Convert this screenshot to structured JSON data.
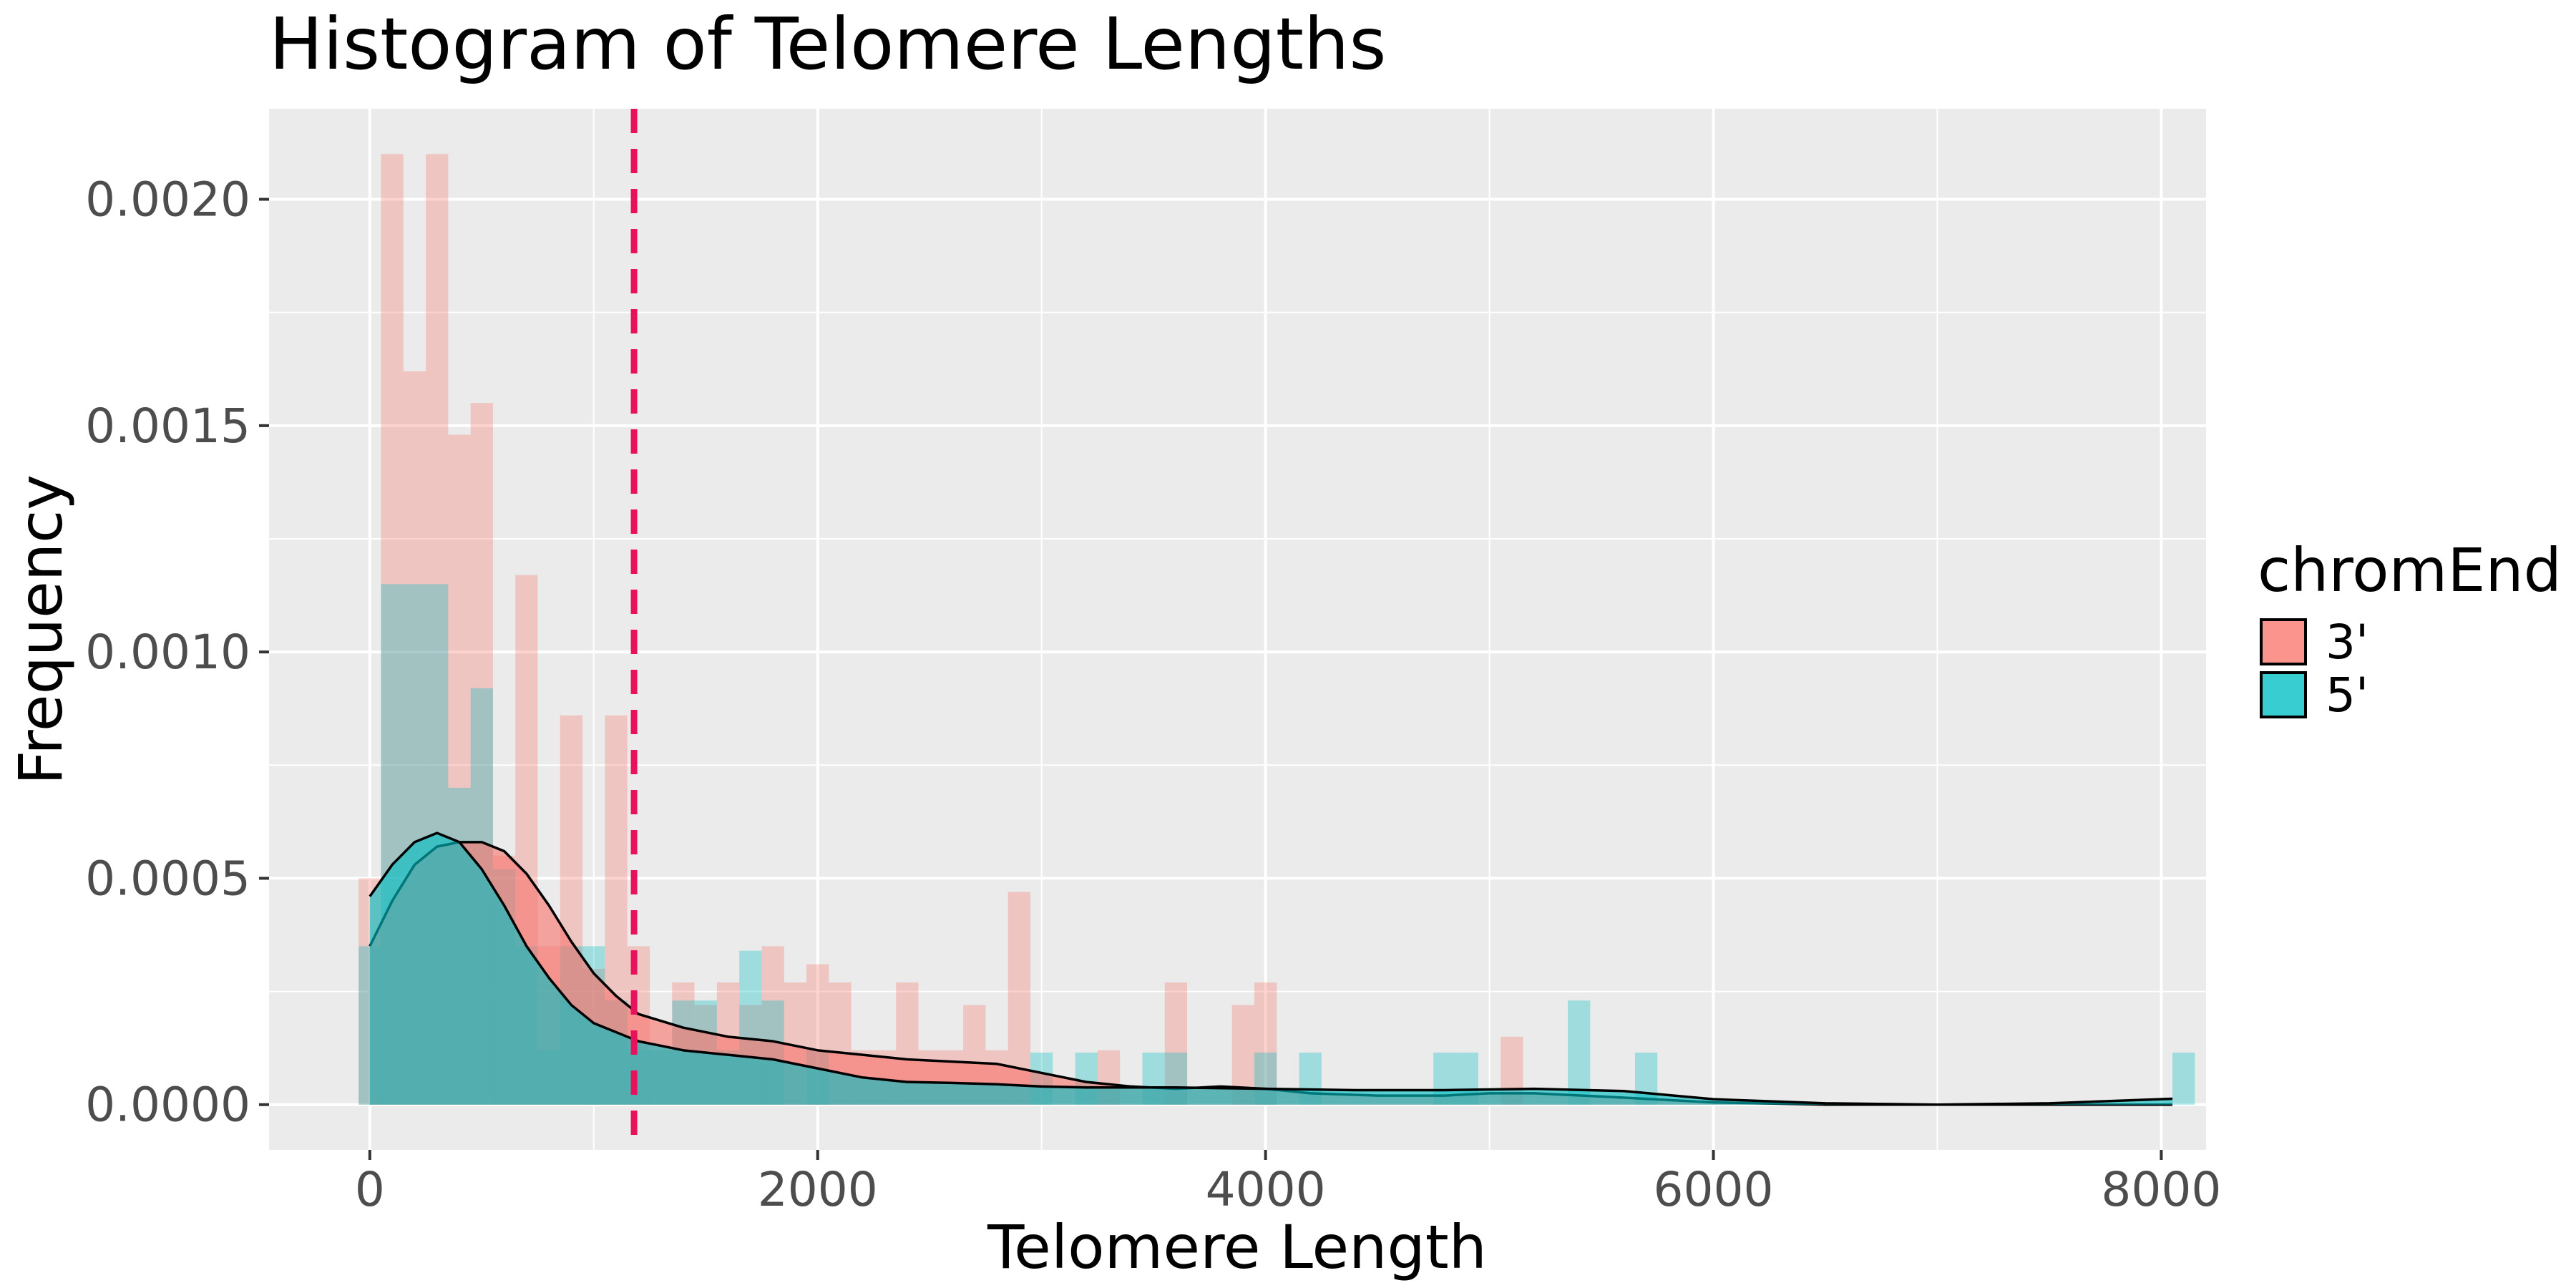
{
  "chart_data": {
    "type": "bar",
    "title": "Histogram of Telomere Lengths",
    "xlabel": "Telomere Length",
    "ylabel": "Frequency",
    "xlim": [
      -450,
      8200
    ],
    "ylim": [
      -0.0001,
      0.0022
    ],
    "x_ticks": [
      0,
      2000,
      4000,
      6000,
      8000
    ],
    "x_tick_labels": [
      "0",
      "2000",
      "4000",
      "6000",
      "8000"
    ],
    "y_ticks": [
      0.0,
      0.0005,
      0.001,
      0.0015,
      0.002
    ],
    "y_tick_labels": [
      "0.0000",
      "0.0005",
      "0.0010",
      "0.0015",
      "0.0020"
    ],
    "grid": true,
    "legend": {
      "title": "chromEnd",
      "position": "right"
    },
    "reference_line": {
      "x": 1180,
      "color": "#e8125c",
      "style": "dashed"
    },
    "bin_width": 100,
    "series": [
      {
        "name": "3'",
        "color": "#f8766d",
        "bins": [
          {
            "x": 0,
            "y": 0.0005
          },
          {
            "x": 100,
            "y": 0.0021
          },
          {
            "x": 200,
            "y": 0.00162
          },
          {
            "x": 300,
            "y": 0.0021
          },
          {
            "x": 400,
            "y": 0.00148
          },
          {
            "x": 500,
            "y": 0.00155
          },
          {
            "x": 600,
            "y": 0.00055
          },
          {
            "x": 700,
            "y": 0.00117
          },
          {
            "x": 800,
            "y": 0.00035
          },
          {
            "x": 900,
            "y": 0.00086
          },
          {
            "x": 1000,
            "y": 0.0003
          },
          {
            "x": 1100,
            "y": 0.00086
          },
          {
            "x": 1200,
            "y": 0.00035
          },
          {
            "x": 1300,
            "y": 0.00012
          },
          {
            "x": 1400,
            "y": 0.00027
          },
          {
            "x": 1500,
            "y": 0.00022
          },
          {
            "x": 1600,
            "y": 0.00027
          },
          {
            "x": 1700,
            "y": 0.00022
          },
          {
            "x": 1800,
            "y": 0.00035
          },
          {
            "x": 1900,
            "y": 0.00027
          },
          {
            "x": 2000,
            "y": 0.00031
          },
          {
            "x": 2100,
            "y": 0.00027
          },
          {
            "x": 2200,
            "y": 0.00012
          },
          {
            "x": 2300,
            "y": 0.00012
          },
          {
            "x": 2400,
            "y": 0.00027
          },
          {
            "x": 2500,
            "y": 0.00012
          },
          {
            "x": 2600,
            "y": 0.00012
          },
          {
            "x": 2700,
            "y": 0.00022
          },
          {
            "x": 2800,
            "y": 0.00012
          },
          {
            "x": 2900,
            "y": 0.00047
          },
          {
            "x": 3300,
            "y": 0.00012
          },
          {
            "x": 3600,
            "y": 0.00027
          },
          {
            "x": 3900,
            "y": 0.00022
          },
          {
            "x": 4000,
            "y": 0.00027
          },
          {
            "x": 5100,
            "y": 0.00015
          }
        ]
      },
      {
        "name": "5'",
        "color": "#00bfc4",
        "bins": [
          {
            "x": 0,
            "y": 0.00035
          },
          {
            "x": 100,
            "y": 0.00115
          },
          {
            "x": 200,
            "y": 0.00115
          },
          {
            "x": 300,
            "y": 0.00115
          },
          {
            "x": 400,
            "y": 0.0007
          },
          {
            "x": 500,
            "y": 0.00092
          },
          {
            "x": 600,
            "y": 0.00052
          },
          {
            "x": 700,
            "y": 0.00035
          },
          {
            "x": 800,
            "y": 0.00012
          },
          {
            "x": 900,
            "y": 0.00035
          },
          {
            "x": 1000,
            "y": 0.00035
          },
          {
            "x": 1100,
            "y": 0.00023
          },
          {
            "x": 1200,
            "y": 0.00012
          },
          {
            "x": 1300,
            "y": 0.00012
          },
          {
            "x": 1400,
            "y": 0.00023
          },
          {
            "x": 1500,
            "y": 0.00023
          },
          {
            "x": 1600,
            "y": 0.00012
          },
          {
            "x": 1700,
            "y": 0.00034
          },
          {
            "x": 1800,
            "y": 0.00023
          },
          {
            "x": 2000,
            "y": 0.00012
          },
          {
            "x": 3000,
            "y": 0.000115
          },
          {
            "x": 3200,
            "y": 0.000115
          },
          {
            "x": 3500,
            "y": 0.000115
          },
          {
            "x": 3600,
            "y": 0.000115
          },
          {
            "x": 4000,
            "y": 0.000115
          },
          {
            "x": 4200,
            "y": 0.000115
          },
          {
            "x": 4800,
            "y": 0.000115
          },
          {
            "x": 4900,
            "y": 0.000115
          },
          {
            "x": 5400,
            "y": 0.00023
          },
          {
            "x": 5700,
            "y": 0.000115
          },
          {
            "x": 8100,
            "y": 0.000115
          }
        ]
      }
    ],
    "density": [
      {
        "name": "3'",
        "color": "#f8766d",
        "points": [
          [
            0,
            0.00035
          ],
          [
            100,
            0.00045
          ],
          [
            200,
            0.00053
          ],
          [
            300,
            0.00057
          ],
          [
            400,
            0.00058
          ],
          [
            500,
            0.00058
          ],
          [
            600,
            0.00056
          ],
          [
            700,
            0.00051
          ],
          [
            800,
            0.00044
          ],
          [
            900,
            0.00036
          ],
          [
            1000,
            0.00029
          ],
          [
            1100,
            0.00024
          ],
          [
            1200,
            0.0002
          ],
          [
            1400,
            0.00017
          ],
          [
            1600,
            0.00015
          ],
          [
            1800,
            0.00014
          ],
          [
            2000,
            0.00012
          ],
          [
            2200,
            0.00011
          ],
          [
            2400,
            0.0001
          ],
          [
            2600,
            9.5e-05
          ],
          [
            2800,
            9e-05
          ],
          [
            3000,
            7e-05
          ],
          [
            3200,
            5e-05
          ],
          [
            3400,
            4e-05
          ],
          [
            3600,
            3.5e-05
          ],
          [
            3800,
            4e-05
          ],
          [
            4000,
            3.5e-05
          ],
          [
            4200,
            2.5e-05
          ],
          [
            4500,
            2e-05
          ],
          [
            4800,
            2e-05
          ],
          [
            5000,
            2.5e-05
          ],
          [
            5200,
            2.5e-05
          ],
          [
            5500,
            1.8e-05
          ],
          [
            6000,
            5e-06
          ],
          [
            6500,
            0.0
          ],
          [
            7000,
            0.0
          ],
          [
            7500,
            0.0
          ],
          [
            8050,
            0.0
          ]
        ]
      },
      {
        "name": "5'",
        "color": "#00bfc4",
        "points": [
          [
            0,
            0.00046
          ],
          [
            100,
            0.00053
          ],
          [
            200,
            0.00058
          ],
          [
            300,
            0.0006
          ],
          [
            400,
            0.00058
          ],
          [
            500,
            0.00052
          ],
          [
            600,
            0.00044
          ],
          [
            700,
            0.00035
          ],
          [
            800,
            0.00028
          ],
          [
            900,
            0.00022
          ],
          [
            1000,
            0.00018
          ],
          [
            1200,
            0.00014
          ],
          [
            1400,
            0.00012
          ],
          [
            1600,
            0.00011
          ],
          [
            1800,
            0.0001
          ],
          [
            2000,
            8e-05
          ],
          [
            2200,
            6e-05
          ],
          [
            2400,
            5e-05
          ],
          [
            2600,
            4.8e-05
          ],
          [
            2800,
            4.5e-05
          ],
          [
            3000,
            4e-05
          ],
          [
            3200,
            3.8e-05
          ],
          [
            3600,
            3.8e-05
          ],
          [
            4000,
            3.5e-05
          ],
          [
            4400,
            3.2e-05
          ],
          [
            4800,
            3.2e-05
          ],
          [
            5200,
            3.5e-05
          ],
          [
            5600,
            3e-05
          ],
          [
            6000,
            1.2e-05
          ],
          [
            6500,
            3e-06
          ],
          [
            7000,
            0.0
          ],
          [
            7500,
            3e-06
          ],
          [
            8050,
            1.3e-05
          ]
        ]
      }
    ]
  }
}
